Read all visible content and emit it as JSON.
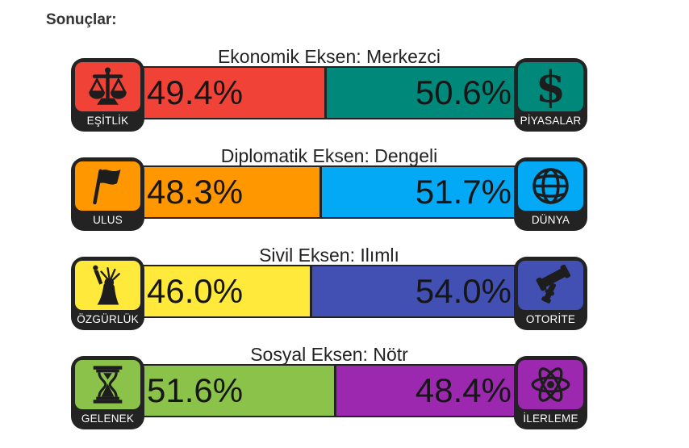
{
  "page": {
    "heading": "Sonuçlar:"
  },
  "theme": {
    "frame_dark": "#232323",
    "value_text": "#161616",
    "title_text": "#222222",
    "tile_label_text": "#ffffff",
    "background": "#ffffff"
  },
  "axes": [
    {
      "title": "Ekonomik Eksen: Merkezci",
      "left": {
        "label": "EŞİTLİK",
        "icon": "scales-icon",
        "color": "#f04237",
        "percent": 49.4,
        "value_label": "49.4%"
      },
      "right": {
        "label": "PİYASALAR",
        "icon": "dollar-icon",
        "color": "#00897b",
        "percent": 50.6,
        "value_label": "50.6%"
      }
    },
    {
      "title": "Diplomatik Eksen: Dengeli",
      "left": {
        "label": "ULUS",
        "icon": "flag-icon",
        "color": "#ff9800",
        "percent": 48.3,
        "value_label": "48.3%"
      },
      "right": {
        "label": "DÜNYA",
        "icon": "globe-icon",
        "color": "#03a9f4",
        "percent": 51.7,
        "value_label": "51.7%"
      }
    },
    {
      "title": "Sivil Eksen: Ilımlı",
      "left": {
        "label": "ÖZGÜRLÜK",
        "icon": "liberty-icon",
        "color": "#ffe93b",
        "percent": 46.0,
        "value_label": "46.0%"
      },
      "right": {
        "label": "OTORİTE",
        "icon": "gavel-icon",
        "color": "#4250b4",
        "percent": 54.0,
        "value_label": "54.0%"
      }
    },
    {
      "title": "Sosyal Eksen: Nötr",
      "left": {
        "label": "GELENEK",
        "icon": "hourglass-icon",
        "color": "#8bc34a",
        "percent": 51.6,
        "value_label": "51.6%"
      },
      "right": {
        "label": "İLERLEME",
        "icon": "atom-icon",
        "color": "#9b28af",
        "percent": 48.4,
        "value_label": "48.4%"
      }
    }
  ],
  "chart_data": {
    "type": "bar",
    "subtype": "horizontal-stacked-percent",
    "title": "Sonuçlar:",
    "categories": [
      "Ekonomik Eksen: Merkezci",
      "Diplomatik Eksen: Dengeli",
      "Sivil Eksen: Ilımlı",
      "Sosyal Eksen: Nötr"
    ],
    "series": [
      {
        "name": "left-pole",
        "labels": [
          "EŞİTLİK",
          "ULUS",
          "ÖZGÜRLÜK",
          "GELENEK"
        ],
        "values": [
          49.4,
          48.3,
          46.0,
          51.6
        ],
        "colors": [
          "#f04237",
          "#ff9800",
          "#ffe93b",
          "#8bc34a"
        ]
      },
      {
        "name": "right-pole",
        "labels": [
          "PİYASALAR",
          "DÜNYA",
          "OTORİTE",
          "İLERLEME"
        ],
        "values": [
          50.6,
          51.7,
          54.0,
          48.4
        ],
        "colors": [
          "#00897b",
          "#03a9f4",
          "#4250b4",
          "#9b28af"
        ]
      }
    ],
    "xlim": [
      0,
      100
    ],
    "grid": false,
    "legend": "icon-tiles-at-bar-ends",
    "value_labels_shown_inside_bars": true
  }
}
